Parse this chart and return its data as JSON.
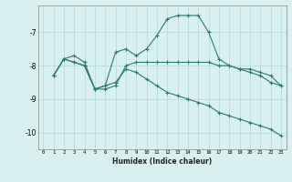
{
  "xlabel": "Humidex (Indice chaleur)",
  "bg_color": "#d8f0f0",
  "line_color": "#2d7a6e",
  "grid_color": "#b0d8d8",
  "xlim": [
    -0.5,
    23.5
  ],
  "ylim": [
    -10.5,
    -6.2
  ],
  "yticks": [
    -10,
    -9,
    -8,
    -7
  ],
  "xticks": [
    0,
    1,
    2,
    3,
    4,
    5,
    6,
    7,
    8,
    9,
    10,
    11,
    12,
    13,
    14,
    15,
    16,
    17,
    18,
    19,
    20,
    21,
    22,
    23
  ],
  "line1_x": [
    1,
    2,
    3,
    4,
    5,
    6,
    7,
    8,
    9,
    10,
    11,
    12,
    13,
    14,
    15,
    16,
    17,
    18,
    19,
    20,
    21,
    22,
    23
  ],
  "line1_y": [
    -8.3,
    -7.8,
    -7.7,
    -7.9,
    -8.7,
    -8.6,
    -7.6,
    -7.5,
    -7.7,
    -7.5,
    -7.1,
    -6.6,
    -6.5,
    -6.5,
    -6.5,
    -7.0,
    -7.8,
    -8.0,
    -8.1,
    -8.2,
    -8.3,
    -8.5,
    -8.6
  ],
  "line2_x": [
    1,
    2,
    3,
    4,
    5,
    6,
    7,
    8,
    9,
    10,
    11,
    12,
    13,
    14,
    15,
    16,
    17,
    18,
    19,
    20,
    21,
    22,
    23
  ],
  "line2_y": [
    -8.3,
    -7.8,
    -7.9,
    -8.0,
    -8.7,
    -8.7,
    -8.6,
    -8.0,
    -7.9,
    -7.9,
    -7.9,
    -7.9,
    -7.9,
    -7.9,
    -7.9,
    -7.9,
    -8.0,
    -8.0,
    -8.1,
    -8.1,
    -8.2,
    -8.3,
    -8.6
  ],
  "line3_x": [
    1,
    2,
    3,
    4,
    5,
    6,
    7,
    8,
    9,
    10,
    11,
    12,
    13,
    14,
    15,
    16,
    17,
    18,
    19,
    20,
    21,
    22,
    23
  ],
  "line3_y": [
    -8.3,
    -7.8,
    -7.9,
    -8.0,
    -8.7,
    -8.6,
    -8.5,
    -8.1,
    -8.2,
    -8.4,
    -8.6,
    -8.8,
    -8.9,
    -9.0,
    -9.1,
    -9.2,
    -9.4,
    -9.5,
    -9.6,
    -9.7,
    -9.8,
    -9.9,
    -10.1
  ]
}
